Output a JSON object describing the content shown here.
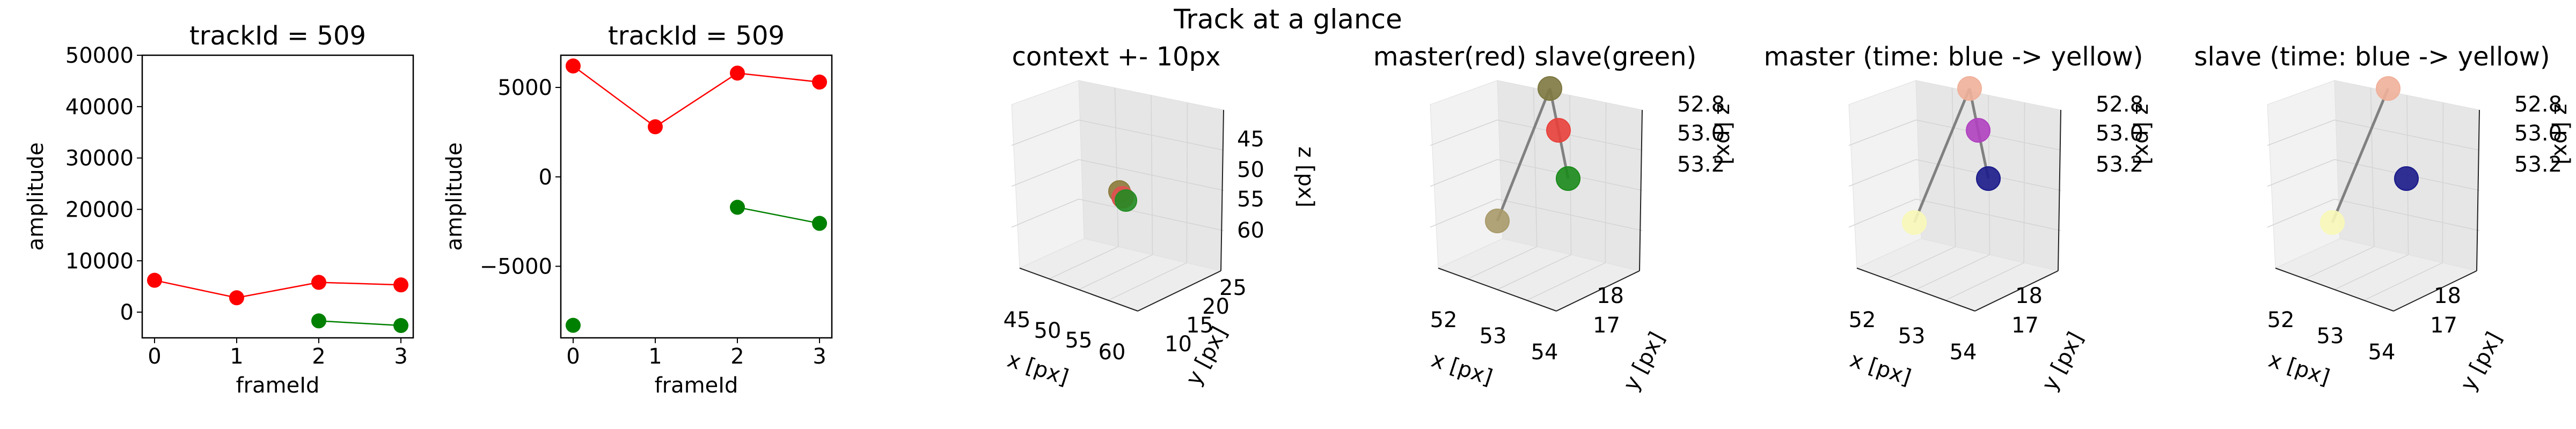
{
  "figure": {
    "suptitle": "Track at a glance"
  },
  "chart_data": [
    {
      "type": "line",
      "title": "trackId = 509",
      "xlabel": "frameId",
      "ylabel": "amplitude",
      "x_ticks": [
        "0",
        "1",
        "2",
        "3"
      ],
      "y_ticks": [
        "0",
        "10000",
        "20000",
        "30000",
        "40000",
        "50000"
      ],
      "xlim": [
        -0.15,
        3.15
      ],
      "ylim": [
        -5000,
        50000
      ],
      "series": [
        {
          "color": "#ff0000",
          "x": [
            0,
            1,
            2,
            3
          ],
          "y": [
            6200,
            2800,
            5800,
            5300
          ]
        },
        {
          "color": "#008000",
          "x": [
            2,
            3
          ],
          "y": [
            -1700,
            -2600
          ]
        }
      ]
    },
    {
      "type": "line",
      "title": "trackId = 509",
      "xlabel": "frameId",
      "ylabel": "amplitude",
      "x_ticks": [
        "0",
        "1",
        "2",
        "3"
      ],
      "y_ticks": [
        "−5000",
        "0",
        "5000"
      ],
      "xlim": [
        -0.15,
        3.15
      ],
      "ylim": [
        -9000,
        6800
      ],
      "series": [
        {
          "color": "#ff0000",
          "x": [
            0,
            1,
            2,
            3
          ],
          "y": [
            6200,
            2800,
            5800,
            5300
          ]
        },
        {
          "color": "#008000",
          "x": [
            0,
            2,
            3
          ],
          "y": [
            -8300,
            -1700,
            -2600
          ],
          "segments": [
            [
              1,
              2
            ]
          ]
        }
      ]
    },
    {
      "type": "scatter3d",
      "title": "context +- 10px",
      "xlabel": "x [px]",
      "ylabel": "y [px]",
      "zlabel": "z [px]",
      "x_ticks": [
        "45",
        "50",
        "55",
        "60"
      ],
      "y_ticks": [
        "10",
        "15",
        "20",
        "25"
      ],
      "z_ticks": [
        "45",
        "50",
        "55",
        "60"
      ],
      "points": [
        {
          "color": "#8c7a3a"
        },
        {
          "color": "#e05050"
        },
        {
          "color": "#228b22"
        }
      ]
    },
    {
      "type": "scatter3d",
      "title": "master(red) slave(green)",
      "xlabel": "x [px]",
      "ylabel": "y [px]",
      "zlabel": "z [px]",
      "x_ticks": [
        "52",
        "53",
        "54"
      ],
      "y_ticks": [
        "17",
        "18"
      ],
      "z_ticks": [
        "52.8",
        "53.0",
        "53.2"
      ],
      "points": [
        {
          "color": "#a89a6a"
        },
        {
          "color": "#7d7840"
        },
        {
          "color": "#e8403a"
        },
        {
          "color": "#1a8a1a"
        }
      ]
    },
    {
      "type": "scatter3d",
      "title": "master (time: blue -> yellow)",
      "xlabel": "x [px]",
      "ylabel": "y [px]",
      "zlabel": "z [px]",
      "x_ticks": [
        "52",
        "53",
        "54"
      ],
      "y_ticks": [
        "17",
        "18"
      ],
      "z_ticks": [
        "52.8",
        "53.0",
        "53.2"
      ],
      "points": [
        {
          "color": "#f8f8b8"
        },
        {
          "color": "#f0b09a"
        },
        {
          "color": "#b040c0"
        },
        {
          "color": "#1a1a8a"
        }
      ]
    },
    {
      "type": "scatter3d",
      "title": "slave (time: blue -> yellow)",
      "xlabel": "x [px]",
      "ylabel": "y [px]",
      "zlabel": "z [px]",
      "x_ticks": [
        "52",
        "53",
        "54"
      ],
      "y_ticks": [
        "17",
        "18"
      ],
      "z_ticks": [
        "52.8",
        "53.0",
        "53.2"
      ],
      "points": [
        {
          "color": "#f8f8b8"
        },
        {
          "color": "#f0b09a"
        },
        {
          "color": "#1a1a8a"
        }
      ]
    }
  ]
}
